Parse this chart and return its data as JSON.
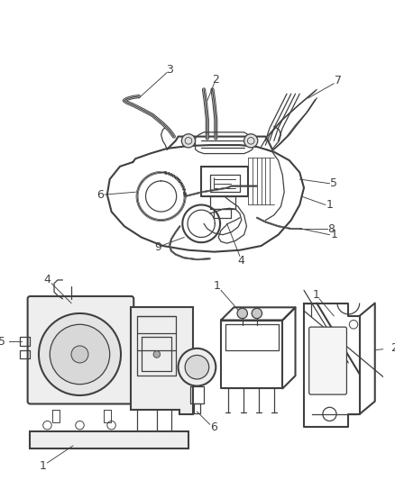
{
  "background_color": "#ffffff",
  "line_color": "#404040",
  "label_color": "#404040",
  "figsize": [
    4.38,
    5.33
  ],
  "dpi": 100,
  "gray_fill": "#d8d8d8",
  "light_fill": "#eeeeee",
  "mid_fill": "#c8c8c8"
}
